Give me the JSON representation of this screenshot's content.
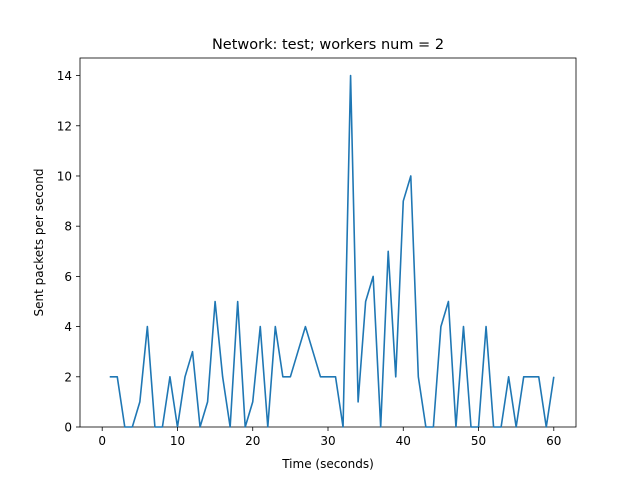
{
  "chart_data": {
    "type": "line",
    "title": "Network: test; workers num = 2",
    "xlabel": "Time (seconds)",
    "ylabel": "Sent packets per second",
    "xlim": [
      -2.95,
      62.95
    ],
    "ylim": [
      0,
      14.7
    ],
    "xticks": [
      0,
      10,
      20,
      30,
      40,
      50,
      60
    ],
    "yticks": [
      0,
      2,
      4,
      6,
      8,
      10,
      12,
      14
    ],
    "grid": false,
    "series": [
      {
        "color": "#1f77b4",
        "x": [
          1,
          2,
          3,
          4,
          5,
          6,
          7,
          8,
          9,
          10,
          11,
          12,
          13,
          14,
          15,
          16,
          17,
          18,
          19,
          20,
          21,
          22,
          23,
          24,
          25,
          26,
          27,
          28,
          29,
          30,
          31,
          32,
          33,
          34,
          35,
          36,
          37,
          38,
          39,
          40,
          41,
          42,
          43,
          44,
          45,
          46,
          47,
          48,
          49,
          50,
          51,
          52,
          53,
          54,
          55,
          56,
          57,
          58,
          59,
          60
        ],
        "y": [
          2,
          2,
          0,
          0,
          1,
          4,
          0,
          0,
          2,
          0,
          2,
          3,
          0,
          1,
          5,
          2,
          0,
          5,
          0,
          1,
          4,
          0,
          4,
          2,
          2,
          3,
          4,
          3,
          2,
          2,
          2,
          0,
          14,
          1,
          5,
          6,
          0,
          7,
          2,
          9,
          10,
          2,
          0,
          0,
          4,
          5,
          0,
          4,
          0,
          0,
          4,
          0,
          0,
          2,
          0,
          2,
          2,
          2,
          0,
          2
        ]
      }
    ]
  }
}
